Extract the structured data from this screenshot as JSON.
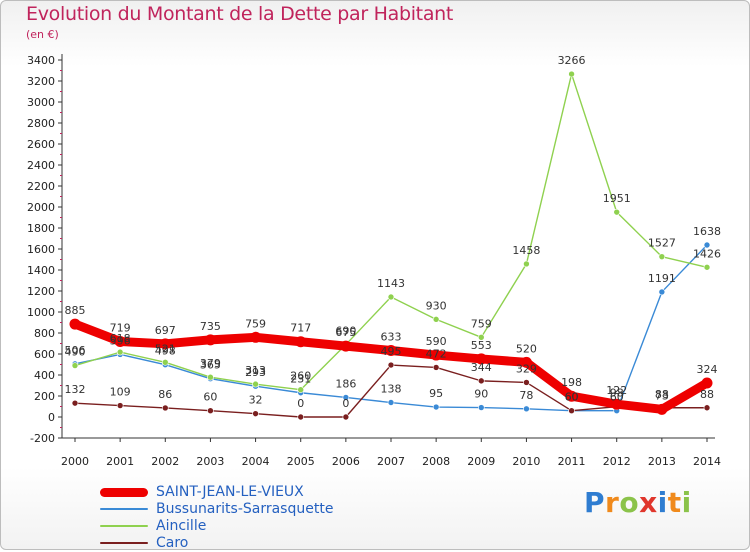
{
  "title": "Evolution du Montant de la Dette par Habitant",
  "subtitle": "(en €)",
  "chart_data": {
    "type": "line",
    "title": "Evolution du Montant de la Dette par Habitant",
    "ylabel": "(en €)",
    "x": [
      "2000",
      "2001",
      "2002",
      "2003",
      "2004",
      "2005",
      "2006",
      "2007",
      "2008",
      "2009",
      "2010",
      "2011",
      "2012",
      "2013",
      "2014"
    ],
    "ylim": [
      -200,
      3400
    ],
    "yticks": [
      -200,
      0,
      200,
      400,
      600,
      800,
      1000,
      1200,
      1400,
      1600,
      1800,
      2000,
      2200,
      2400,
      2600,
      2800,
      3000,
      3200,
      3400
    ],
    "grid": false,
    "legend_position": "bottom-left",
    "series": [
      {
        "name": "SAINT-JEAN-LE-VIEUX",
        "color": "#ee0000",
        "values": [
          885,
          719,
          697,
          735,
          759,
          717,
          675,
          633,
          590,
          553,
          520,
          198,
          122,
          73,
          324
        ]
      },
      {
        "name": "Bussunarits-Sarrasquette",
        "color": "#3a8ad6",
        "values": [
          506,
          596,
          498,
          365,
          293,
          231,
          186,
          138,
          95,
          90,
          78,
          60,
          60,
          1191,
          1638
        ]
      },
      {
        "name": "Aincille",
        "color": "#8fd14f",
        "values": [
          490,
          618,
          521,
          379,
          313,
          260,
          690,
          1143,
          930,
          759,
          1458,
          3266,
          1951,
          1527,
          1426
        ]
      },
      {
        "name": "Caro",
        "color": "#7a1f1f",
        "values": [
          132,
          109,
          86,
          60,
          32,
          0,
          0,
          495,
          472,
          344,
          329,
          60,
          98,
          88,
          88
        ]
      }
    ]
  },
  "logo": {
    "text": "Proxiti",
    "chars": [
      "P",
      "r",
      "o",
      "x",
      "i",
      "t",
      "i"
    ]
  }
}
